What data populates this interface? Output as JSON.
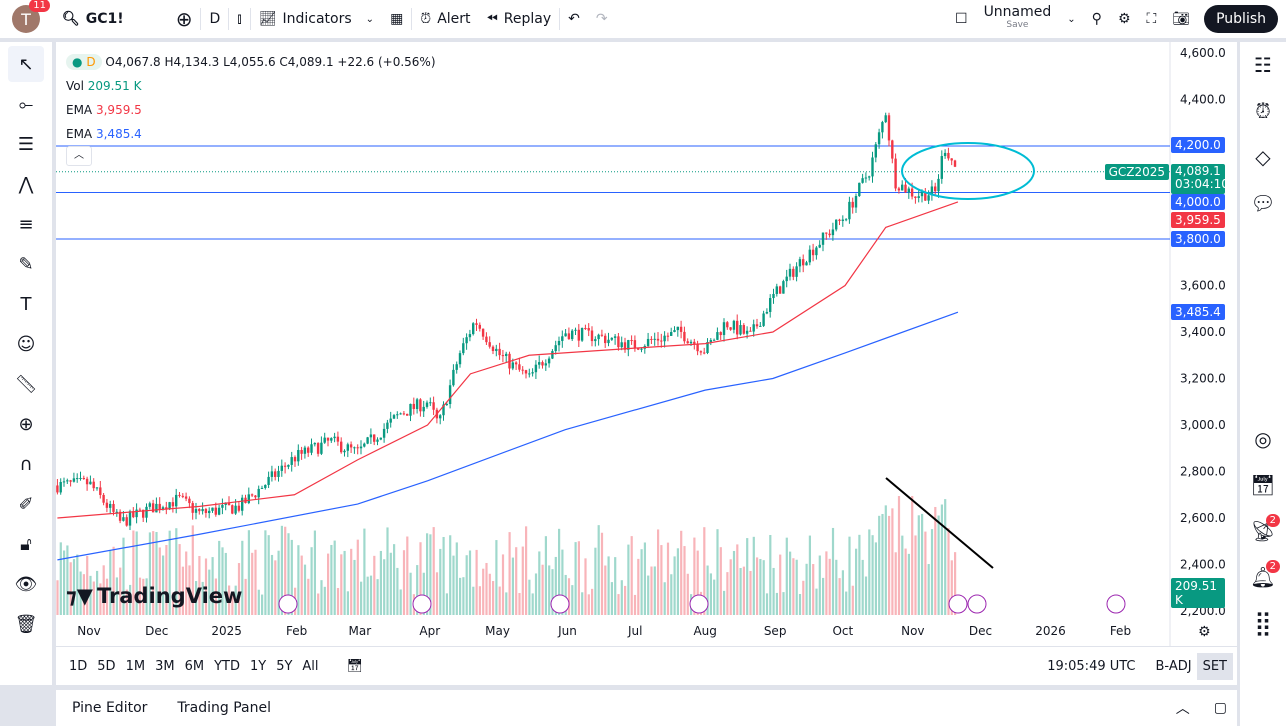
{
  "topbar": {
    "avatar_letter": "T",
    "avatar_badge": "11",
    "symbol": "GC1!",
    "interval": "D",
    "indicators": "Indicators",
    "alert": "Alert",
    "replay": "Replay",
    "layout_name": "Unnamed",
    "layout_save": "Save",
    "publish": "Publish"
  },
  "legend": {
    "interval": "D",
    "ohlc": "O4,067.8 H4,134.3 L4,055.6 C4,089.1 +22.6 (+0.56%)",
    "vol_label": "Vol",
    "vol_value": "209.51 K",
    "ema1_label": "EMA",
    "ema1_value": "3,959.5",
    "ema2_label": "EMA",
    "ema2_value": "3,485.4"
  },
  "price_axis": {
    "ticks": [
      "4,600.0",
      "4,400.0",
      "4,200.0",
      "4,000.0",
      "3,800.0",
      "3,600.0",
      "3,400.0",
      "3,200.0",
      "3,000.0",
      "2,800.0",
      "2,600.0",
      "2,400.0",
      "2,200.0"
    ],
    "tick_values": [
      4600,
      4400,
      4200,
      4000,
      3800,
      3600,
      3400,
      3200,
      3000,
      2800,
      2600,
      2400,
      2200
    ],
    "labels": {
      "h4200": "4,200.0",
      "h4000": "4,000.0",
      "h3800": "3,800.0",
      "contract": "GCZ2025",
      "last": "4,089.1",
      "countdown": "03:04:10",
      "ema1": "3,959.5",
      "ema2": "3,485.4",
      "vol": "209.51 K"
    }
  },
  "time_axis": {
    "labels": [
      "Nov",
      "Dec",
      "2025",
      "Feb",
      "Mar",
      "Apr",
      "May",
      "Jun",
      "Jul",
      "Aug",
      "Sep",
      "Oct",
      "Nov",
      "Dec",
      "2026",
      "Feb"
    ],
    "dates": [
      "2024-11-01",
      "2024-12-01",
      "2025-01-01",
      "2025-02-01",
      "2025-03-01",
      "2025-04-01",
      "2025-05-01",
      "2025-06-01",
      "2025-07-01",
      "2025-08-01",
      "2025-09-01",
      "2025-10-01",
      "2025-11-01",
      "2025-12-01",
      "2026-01-01",
      "2026-02-01"
    ]
  },
  "bottom_toolbar": {
    "ranges": [
      "1D",
      "5D",
      "1M",
      "3M",
      "6M",
      "YTD",
      "1Y",
      "5Y",
      "All"
    ],
    "clock": "19:05:49 UTC",
    "badj": "B-ADJ",
    "set": "SET"
  },
  "panel": {
    "pine": "Pine Editor",
    "trading": "Trading Panel"
  },
  "watermark": "TradingView",
  "right_badges": {
    "alerts": "2",
    "notifications": "2"
  },
  "colors": {
    "up": "#089981",
    "down": "#f23645",
    "ema_fast": "#f23645",
    "ema_slow": "#2962ff",
    "hline": "#2962ff",
    "ellipse": "#00bcd4"
  },
  "chart_data": {
    "type": "candlestick",
    "symbol": "GC1!",
    "close_path": [
      [
        "2024-10-18",
        2740
      ],
      [
        "2024-11-01",
        2750
      ],
      [
        "2024-11-15",
        2580
      ],
      [
        "2024-11-30",
        2650
      ],
      [
        "2024-12-11",
        2680
      ],
      [
        "2024-12-20",
        2620
      ],
      [
        "2025-01-07",
        2650
      ],
      [
        "2025-01-31",
        2860
      ],
      [
        "2025-02-16",
        2930
      ],
      [
        "2025-02-28",
        2880
      ],
      [
        "2025-03-19",
        3050
      ],
      [
        "2025-03-31",
        3100
      ],
      [
        "2025-04-05",
        3000
      ],
      [
        "2025-04-14",
        3300
      ],
      [
        "2025-04-21",
        3450
      ],
      [
        "2025-05-02",
        3300
      ],
      [
        "2025-05-15",
        3200
      ],
      [
        "2025-05-31",
        3400
      ],
      [
        "2025-06-15",
        3380
      ],
      [
        "2025-06-30",
        3340
      ],
      [
        "2025-07-21",
        3400
      ],
      [
        "2025-08-01",
        3320
      ],
      [
        "2025-08-10",
        3440
      ],
      [
        "2025-08-21",
        3380
      ],
      [
        "2025-08-31",
        3550
      ],
      [
        "2025-09-12",
        3700
      ],
      [
        "2025-10-02",
        3900
      ],
      [
        "2025-10-13",
        4100
      ],
      [
        "2025-10-20",
        4350
      ],
      [
        "2025-10-24",
        4050
      ],
      [
        "2025-11-02",
        3990
      ],
      [
        "2025-11-11",
        4000
      ],
      [
        "2025-11-15",
        4200
      ],
      [
        "2025-11-21",
        4089.1
      ]
    ],
    "ema_fast": [
      [
        "2024-10-18",
        2600
      ],
      [
        "2024-12-20",
        2650
      ],
      [
        "2025-01-31",
        2700
      ],
      [
        "2025-02-28",
        2850
      ],
      [
        "2025-03-31",
        3000
      ],
      [
        "2025-04-19",
        3220
      ],
      [
        "2025-05-15",
        3300
      ],
      [
        "2025-06-30",
        3330
      ],
      [
        "2025-08-01",
        3350
      ],
      [
        "2025-08-31",
        3400
      ],
      [
        "2025-10-02",
        3600
      ],
      [
        "2025-10-20",
        3850
      ],
      [
        "2025-11-21",
        3959.5
      ]
    ],
    "ema_slow": [
      [
        "2024-10-18",
        2420
      ],
      [
        "2024-12-20",
        2530
      ],
      [
        "2025-02-28",
        2660
      ],
      [
        "2025-03-31",
        2760
      ],
      [
        "2025-05-31",
        2980
      ],
      [
        "2025-08-01",
        3150
      ],
      [
        "2025-08-31",
        3200
      ],
      [
        "2025-10-02",
        3310
      ],
      [
        "2025-11-21",
        3485.4
      ]
    ],
    "horizontal_lines": [
      4200,
      4000,
      3800
    ],
    "ylim": [
      2200,
      4600
    ]
  }
}
